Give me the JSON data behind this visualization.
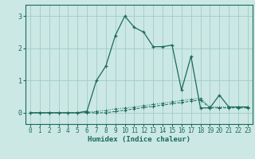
{
  "xlabel": "Humidex (Indice chaleur)",
  "bg_color": "#cce8e4",
  "grid_color": "#a0ccc8",
  "line_color": "#1a6b5a",
  "xlim": [
    -0.5,
    23.5
  ],
  "ylim": [
    -0.35,
    3.35
  ],
  "xticks": [
    0,
    1,
    2,
    3,
    4,
    5,
    6,
    7,
    8,
    9,
    10,
    11,
    12,
    13,
    14,
    15,
    16,
    17,
    18,
    19,
    20,
    21,
    22,
    23
  ],
  "yticks": [
    0,
    1,
    2,
    3
  ],
  "series1_x": [
    0,
    1,
    2,
    3,
    4,
    5,
    6,
    7,
    8,
    9,
    10,
    11,
    12,
    13,
    14,
    15,
    16,
    17,
    18,
    19,
    20,
    21,
    22,
    23
  ],
  "series1_y": [
    0.0,
    0.0,
    0.0,
    0.0,
    0.0,
    0.0,
    0.02,
    0.04,
    0.08,
    0.12,
    0.15,
    0.18,
    0.22,
    0.26,
    0.3,
    0.34,
    0.38,
    0.42,
    0.45,
    0.18,
    0.18,
    0.18,
    0.18,
    0.18
  ],
  "series2_x": [
    0,
    1,
    2,
    3,
    4,
    5,
    6,
    7,
    8,
    9,
    10,
    11,
    12,
    13,
    14,
    15,
    16,
    17,
    18,
    19,
    20,
    21,
    22,
    23
  ],
  "series2_y": [
    0.0,
    0.0,
    0.0,
    0.0,
    0.0,
    0.0,
    0.05,
    1.0,
    1.45,
    2.4,
    3.0,
    2.65,
    2.5,
    2.05,
    2.05,
    2.1,
    0.7,
    1.75,
    0.15,
    0.15,
    0.55,
    0.18,
    0.18,
    0.18
  ],
  "series3_x": [
    0,
    1,
    2,
    3,
    4,
    5,
    6,
    7,
    8,
    9,
    10,
    11,
    12,
    13,
    14,
    15,
    16,
    17,
    18,
    19,
    20,
    21,
    22,
    23
  ],
  "series3_y": [
    0.0,
    0.0,
    0.0,
    0.0,
    0.0,
    0.0,
    0.0,
    0.0,
    0.0,
    0.04,
    0.08,
    0.12,
    0.16,
    0.2,
    0.24,
    0.28,
    0.32,
    0.36,
    0.4,
    0.15,
    0.15,
    0.15,
    0.15,
    0.15
  ]
}
